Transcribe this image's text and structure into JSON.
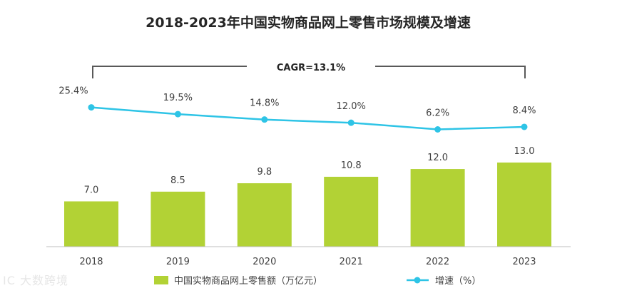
{
  "chart_data": {
    "type": "bar",
    "title": "2018-2023年中国实物商品网上零售市场规模及增速",
    "categories": [
      "2018",
      "2019",
      "2020",
      "2021",
      "2022",
      "2023"
    ],
    "series": [
      {
        "name": "中国实物商品网上零售额（万亿元）",
        "type": "bar",
        "values": [
          7.0,
          8.5,
          9.8,
          10.8,
          12.0,
          13.0
        ],
        "value_labels": [
          "7.0",
          "8.5",
          "9.8",
          "10.8",
          "12.0",
          "13.0"
        ],
        "color": "#b2d235"
      },
      {
        "name": "增速（%）",
        "type": "line",
        "values": [
          25.4,
          19.5,
          14.8,
          12.0,
          6.2,
          8.4
        ],
        "value_labels": [
          "25.4%",
          "19.5%",
          "14.8%",
          "12.0%",
          "6.2%",
          "8.4%"
        ],
        "color": "#2ec4e6"
      }
    ],
    "annotation": "CAGR=13.1%",
    "legend_position": "bottom-center",
    "grid": false
  },
  "watermark": "IC 大数跨境",
  "colors": {
    "bar": "#b2d235",
    "line": "#2ec4e6",
    "text": "#404040",
    "axis": "#bfbfbf",
    "bracket": "#595959"
  }
}
